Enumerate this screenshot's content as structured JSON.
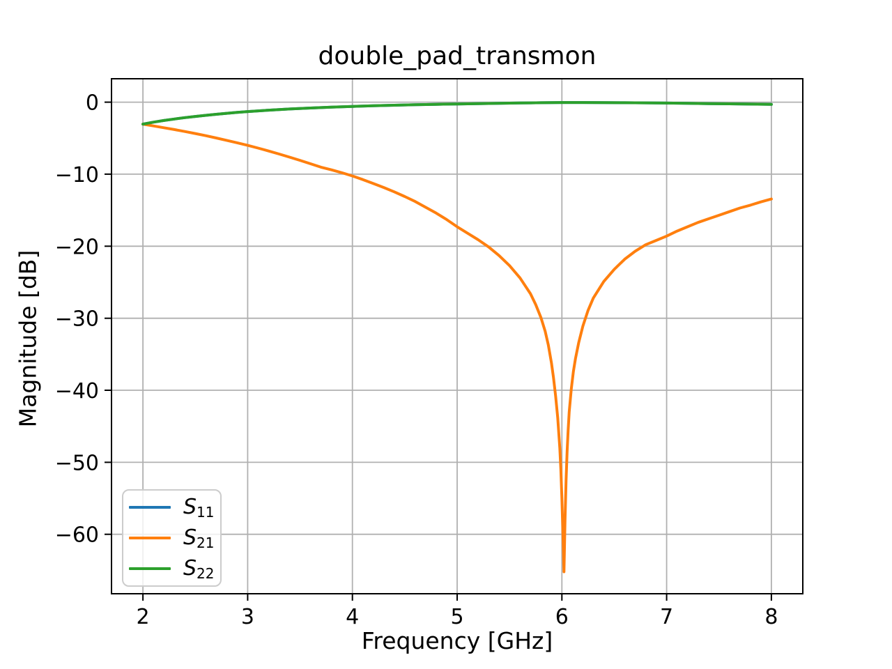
{
  "chart_data": {
    "type": "line",
    "title": "double_pad_transmon",
    "xlabel": "Frequency [GHz]",
    "ylabel": "Magnitude [dB]",
    "xlim": [
      1.7,
      8.3
    ],
    "ylim": [
      -68.25,
      3.25
    ],
    "grid": true,
    "legend_position": "lower left",
    "x_ticks": {
      "values": [
        2,
        3,
        4,
        5,
        6,
        7,
        8
      ],
      "labels": [
        "2",
        "3",
        "4",
        "5",
        "6",
        "7",
        "8"
      ]
    },
    "y_ticks": {
      "values": [
        0,
        -10,
        -20,
        -30,
        -40,
        -50,
        -60
      ],
      "labels": [
        "0",
        "−10",
        "−20",
        "−30",
        "−40",
        "−50",
        "−60"
      ]
    },
    "colors": {
      "grid": "#b0b0b0",
      "axis": "#000000",
      "legend_border": "#cccccc",
      "s11": "#1f77b4",
      "s21": "#ff7f0e",
      "s22": "#2ca02c"
    },
    "notch": {
      "frequency_ghz": 6.02,
      "magnitude_db": -65.2
    },
    "series": [
      {
        "name": "S11",
        "label_base": "S",
        "label_sub": "11",
        "color": "#1f77b4",
        "points": [
          [
            2.0,
            -3.05
          ],
          [
            2.1,
            -2.78
          ],
          [
            2.2,
            -2.55
          ],
          [
            2.3,
            -2.34
          ],
          [
            2.4,
            -2.15
          ],
          [
            2.5,
            -1.98
          ],
          [
            2.6,
            -1.83
          ],
          [
            2.7,
            -1.68
          ],
          [
            2.8,
            -1.55
          ],
          [
            2.9,
            -1.42
          ],
          [
            3.0,
            -1.31
          ],
          [
            3.2,
            -1.11
          ],
          [
            3.4,
            -0.95
          ],
          [
            3.6,
            -0.81
          ],
          [
            3.8,
            -0.69
          ],
          [
            4.0,
            -0.59
          ],
          [
            4.2,
            -0.5
          ],
          [
            4.4,
            -0.43
          ],
          [
            4.6,
            -0.36
          ],
          [
            4.8,
            -0.3
          ],
          [
            5.0,
            -0.25
          ],
          [
            5.2,
            -0.2
          ],
          [
            5.4,
            -0.16
          ],
          [
            5.6,
            -0.12
          ],
          [
            5.8,
            -0.08
          ],
          [
            6.0,
            -0.05
          ],
          [
            6.2,
            -0.05
          ],
          [
            6.4,
            -0.06
          ],
          [
            6.6,
            -0.08
          ],
          [
            6.8,
            -0.1
          ],
          [
            7.0,
            -0.13
          ],
          [
            7.2,
            -0.16
          ],
          [
            7.4,
            -0.2
          ],
          [
            7.6,
            -0.23
          ],
          [
            7.8,
            -0.27
          ],
          [
            8.0,
            -0.31
          ]
        ]
      },
      {
        "name": "S21",
        "label_base": "S",
        "label_sub": "21",
        "color": "#ff7f0e",
        "points": [
          [
            2.0,
            -3.05
          ],
          [
            2.1,
            -3.3
          ],
          [
            2.2,
            -3.55
          ],
          [
            2.3,
            -3.8
          ],
          [
            2.4,
            -4.07
          ],
          [
            2.5,
            -4.35
          ],
          [
            2.6,
            -4.65
          ],
          [
            2.7,
            -4.97
          ],
          [
            2.8,
            -5.3
          ],
          [
            2.9,
            -5.64
          ],
          [
            3.0,
            -6.0
          ],
          [
            3.1,
            -6.38
          ],
          [
            3.2,
            -6.78
          ],
          [
            3.3,
            -7.2
          ],
          [
            3.4,
            -7.63
          ],
          [
            3.5,
            -8.08
          ],
          [
            3.6,
            -8.55
          ],
          [
            3.7,
            -9.03
          ],
          [
            3.8,
            -9.4
          ],
          [
            3.9,
            -9.8
          ],
          [
            4.0,
            -10.25
          ],
          [
            4.1,
            -10.75
          ],
          [
            4.2,
            -11.3
          ],
          [
            4.3,
            -11.85
          ],
          [
            4.4,
            -12.45
          ],
          [
            4.5,
            -13.1
          ],
          [
            4.6,
            -13.8
          ],
          [
            4.7,
            -14.6
          ],
          [
            4.8,
            -15.4
          ],
          [
            4.9,
            -16.3
          ],
          [
            5.0,
            -17.3
          ],
          [
            5.1,
            -18.2
          ],
          [
            5.2,
            -19.1
          ],
          [
            5.3,
            -20.1
          ],
          [
            5.4,
            -21.3
          ],
          [
            5.5,
            -22.7
          ],
          [
            5.6,
            -24.4
          ],
          [
            5.7,
            -26.6
          ],
          [
            5.75,
            -28.1
          ],
          [
            5.8,
            -29.9
          ],
          [
            5.84,
            -31.8
          ],
          [
            5.87,
            -33.7
          ],
          [
            5.9,
            -36.2
          ],
          [
            5.92,
            -38.3
          ],
          [
            5.94,
            -40.8
          ],
          [
            5.96,
            -43.8
          ],
          [
            5.98,
            -48.0
          ],
          [
            5.99,
            -51.0
          ],
          [
            6.0,
            -55.0
          ],
          [
            6.01,
            -60.0
          ],
          [
            6.02,
            -65.2
          ],
          [
            6.03,
            -58.0
          ],
          [
            6.04,
            -52.5
          ],
          [
            6.05,
            -48.5
          ],
          [
            6.06,
            -45.5
          ],
          [
            6.07,
            -43.0
          ],
          [
            6.09,
            -39.8
          ],
          [
            6.11,
            -37.4
          ],
          [
            6.13,
            -35.6
          ],
          [
            6.16,
            -33.4
          ],
          [
            6.2,
            -31.1
          ],
          [
            6.25,
            -28.9
          ],
          [
            6.3,
            -27.2
          ],
          [
            6.4,
            -24.9
          ],
          [
            6.5,
            -23.2
          ],
          [
            6.6,
            -21.8
          ],
          [
            6.7,
            -20.7
          ],
          [
            6.8,
            -19.8
          ],
          [
            6.9,
            -19.2
          ],
          [
            7.0,
            -18.6
          ],
          [
            7.1,
            -17.9
          ],
          [
            7.2,
            -17.3
          ],
          [
            7.3,
            -16.7
          ],
          [
            7.4,
            -16.2
          ],
          [
            7.5,
            -15.7
          ],
          [
            7.6,
            -15.2
          ],
          [
            7.7,
            -14.7
          ],
          [
            7.8,
            -14.3
          ],
          [
            7.9,
            -13.85
          ],
          [
            8.0,
            -13.45
          ]
        ]
      },
      {
        "name": "S22",
        "label_base": "S",
        "label_sub": "22",
        "color": "#2ca02c",
        "points": [
          [
            2.0,
            -3.05
          ],
          [
            2.1,
            -2.78
          ],
          [
            2.2,
            -2.55
          ],
          [
            2.3,
            -2.34
          ],
          [
            2.4,
            -2.15
          ],
          [
            2.5,
            -1.98
          ],
          [
            2.6,
            -1.83
          ],
          [
            2.7,
            -1.68
          ],
          [
            2.8,
            -1.55
          ],
          [
            2.9,
            -1.42
          ],
          [
            3.0,
            -1.31
          ],
          [
            3.2,
            -1.11
          ],
          [
            3.4,
            -0.95
          ],
          [
            3.6,
            -0.81
          ],
          [
            3.8,
            -0.69
          ],
          [
            4.0,
            -0.59
          ],
          [
            4.2,
            -0.5
          ],
          [
            4.4,
            -0.43
          ],
          [
            4.6,
            -0.36
          ],
          [
            4.8,
            -0.3
          ],
          [
            5.0,
            -0.25
          ],
          [
            5.2,
            -0.2
          ],
          [
            5.4,
            -0.16
          ],
          [
            5.6,
            -0.12
          ],
          [
            5.8,
            -0.08
          ],
          [
            6.0,
            -0.05
          ],
          [
            6.2,
            -0.05
          ],
          [
            6.4,
            -0.06
          ],
          [
            6.6,
            -0.08
          ],
          [
            6.8,
            -0.1
          ],
          [
            7.0,
            -0.13
          ],
          [
            7.2,
            -0.16
          ],
          [
            7.4,
            -0.2
          ],
          [
            7.6,
            -0.23
          ],
          [
            7.8,
            -0.27
          ],
          [
            8.0,
            -0.31
          ]
        ]
      }
    ]
  }
}
